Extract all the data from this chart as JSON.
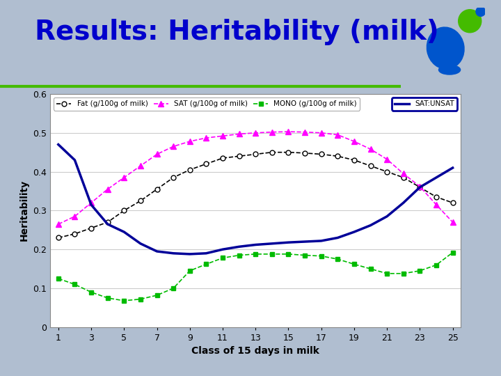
{
  "title": "Results: Heritability (milk)",
  "title_color": "#0000CC",
  "title_fontsize": 28,
  "xlabel": "Class of 15 days in milk",
  "ylabel": "Heritability",
  "bg_outer": "#B0BED0",
  "bg_plot": "#FFFFFF",
  "xlim": [
    1,
    25
  ],
  "ylim": [
    0,
    0.6
  ],
  "xticks": [
    1,
    3,
    5,
    7,
    9,
    11,
    13,
    15,
    17,
    19,
    21,
    23,
    25
  ],
  "yticks": [
    0,
    0.1,
    0.2,
    0.3,
    0.4,
    0.5,
    0.6
  ],
  "x": [
    1,
    2,
    3,
    4,
    5,
    6,
    7,
    8,
    9,
    10,
    11,
    12,
    13,
    14,
    15,
    16,
    17,
    18,
    19,
    20,
    21,
    22,
    23,
    24,
    25
  ],
  "fat": [
    0.23,
    0.24,
    0.255,
    0.27,
    0.3,
    0.325,
    0.355,
    0.385,
    0.405,
    0.42,
    0.435,
    0.44,
    0.445,
    0.45,
    0.45,
    0.448,
    0.445,
    0.44,
    0.43,
    0.415,
    0.4,
    0.385,
    0.36,
    0.335,
    0.32
  ],
  "fat_color": "#000000",
  "fat_label": "Fat (g/100g of milk)",
  "sat": [
    0.265,
    0.285,
    0.32,
    0.355,
    0.385,
    0.415,
    0.445,
    0.465,
    0.478,
    0.487,
    0.492,
    0.497,
    0.5,
    0.502,
    0.503,
    0.502,
    0.5,
    0.495,
    0.478,
    0.458,
    0.432,
    0.395,
    0.362,
    0.315,
    0.27
  ],
  "sat_color": "#FF00FF",
  "sat_label": "SAT (g/100g of milk)",
  "mono": [
    0.125,
    0.11,
    0.09,
    0.075,
    0.068,
    0.072,
    0.082,
    0.1,
    0.145,
    0.162,
    0.178,
    0.185,
    0.188,
    0.188,
    0.188,
    0.185,
    0.183,
    0.175,
    0.162,
    0.15,
    0.138,
    0.138,
    0.145,
    0.16,
    0.192
  ],
  "mono_color": "#00BB00",
  "mono_label": "MONO (g/100g of milk)",
  "satunsat": [
    0.47,
    0.43,
    0.315,
    0.265,
    0.245,
    0.215,
    0.195,
    0.19,
    0.188,
    0.19,
    0.2,
    0.207,
    0.212,
    0.215,
    0.218,
    0.22,
    0.222,
    0.23,
    0.245,
    0.262,
    0.285,
    0.32,
    0.36,
    0.385,
    0.41
  ],
  "satunsat_color": "#000099",
  "satunsat_label": "SAT:UNSAT",
  "logo_blue": "#0055CC",
  "logo_green": "#44BB00",
  "green_line_color": "#44BB00"
}
